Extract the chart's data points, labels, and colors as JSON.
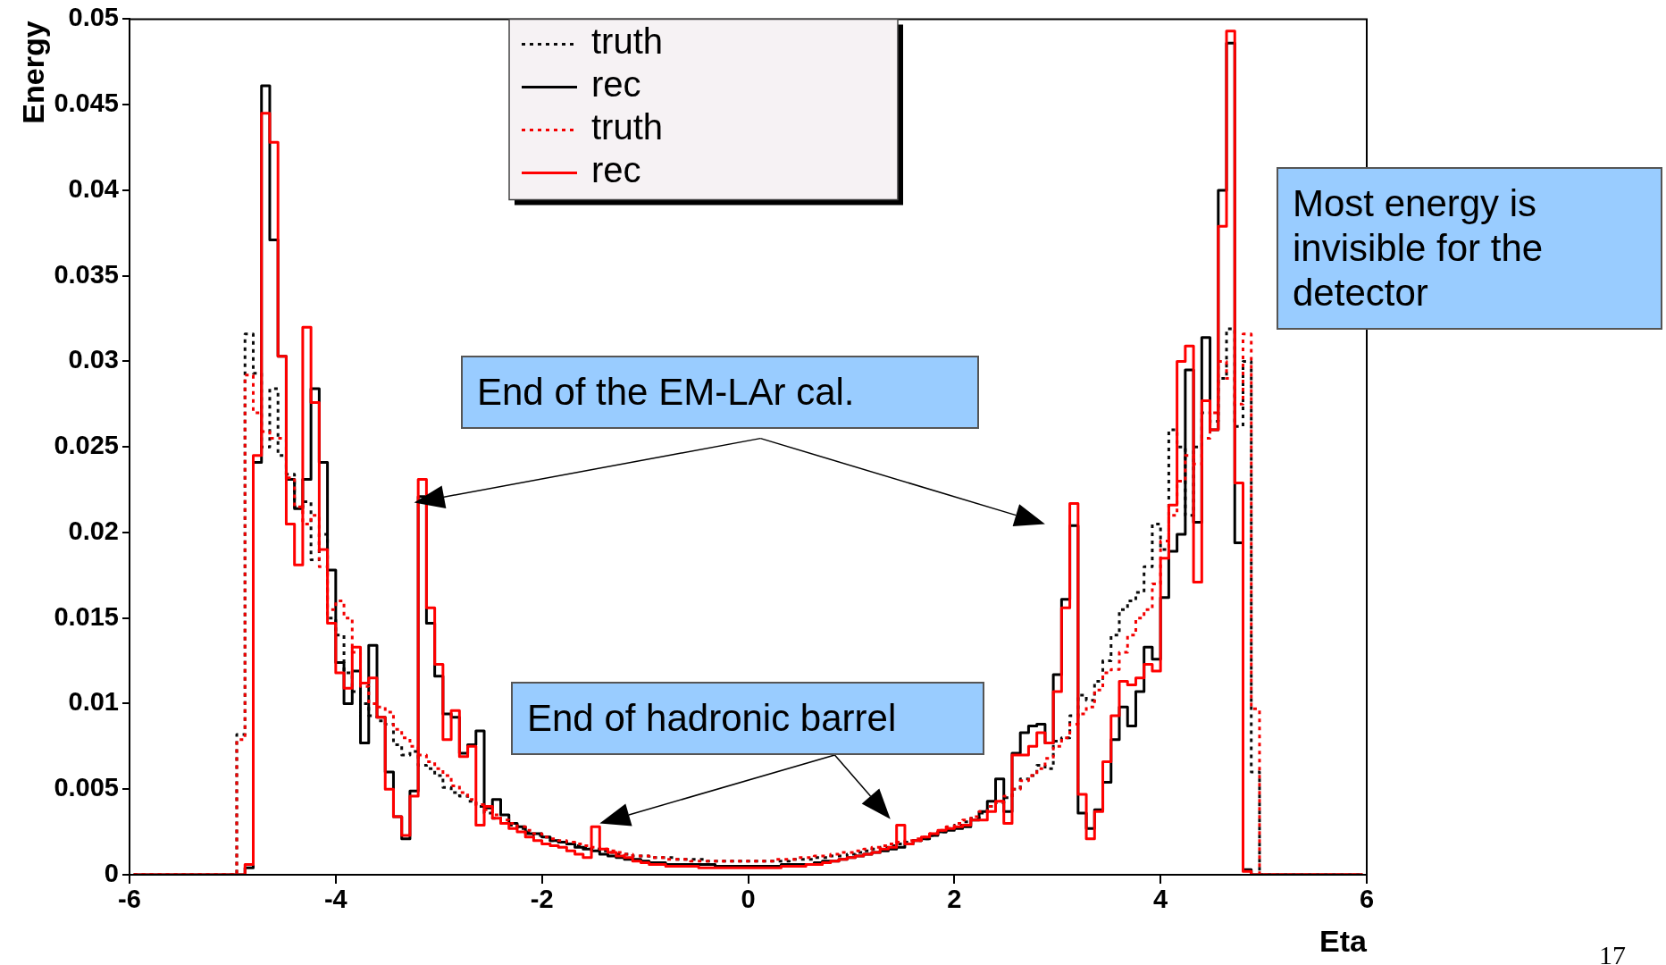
{
  "chart_data": {
    "type": "histogram",
    "xlabel": "Eta",
    "ylabel": "Energy",
    "xlim": [
      -6,
      6
    ],
    "xticks": [
      -6,
      -4,
      -2,
      0,
      2,
      4,
      6
    ],
    "ylim": [
      0,
      0.05
    ],
    "yticks": [
      0,
      0.005,
      0.01,
      0.015,
      0.02,
      0.025,
      0.03,
      0.035,
      0.04,
      0.045,
      0.05
    ],
    "legend": "top",
    "bins": [
      -6,
      -5.92,
      -5.84,
      -5.76,
      -5.68,
      -5.6,
      -5.52,
      -5.44,
      -5.36,
      -5.28,
      -5.2,
      -5.12,
      -5.04,
      -4.96,
      -4.88,
      -4.8,
      -4.72,
      -4.64,
      -4.56,
      -4.48,
      -4.4,
      -4.32,
      -4.24,
      -4.16,
      -4.08,
      -4,
      -3.92,
      -3.84,
      -3.76,
      -3.68,
      -3.6,
      -3.52,
      -3.44,
      -3.36,
      -3.28,
      -3.2,
      -3.12,
      -3.04,
      -2.96,
      -2.88,
      -2.8,
      -2.72,
      -2.64,
      -2.56,
      -2.48,
      -2.4,
      -2.32,
      -2.24,
      -2.16,
      -2.08,
      -2,
      -1.92,
      -1.84,
      -1.76,
      -1.68,
      -1.6,
      -1.52,
      -1.44,
      -1.36,
      -1.28,
      -1.2,
      -1.12,
      -1.04,
      -0.96,
      -0.88,
      -0.8,
      -0.72,
      -0.64,
      -0.56,
      -0.48,
      -0.4,
      -0.32,
      -0.24,
      -0.16,
      -0.08,
      0,
      0.08,
      0.16,
      0.24,
      0.32,
      0.4,
      0.48,
      0.56,
      0.64,
      0.72,
      0.8,
      0.88,
      0.96,
      1.04,
      1.12,
      1.2,
      1.28,
      1.36,
      1.44,
      1.52,
      1.6,
      1.68,
      1.76,
      1.84,
      1.92,
      2,
      2.08,
      2.16,
      2.24,
      2.32,
      2.4,
      2.48,
      2.56,
      2.64,
      2.72,
      2.8,
      2.88,
      2.96,
      3.04,
      3.12,
      3.2,
      3.28,
      3.36,
      3.44,
      3.52,
      3.6,
      3.68,
      3.76,
      3.84,
      3.92,
      4,
      4.08,
      4.16,
      4.24,
      4.32,
      4.4,
      4.48,
      4.56,
      4.64,
      4.72,
      4.8,
      4.88,
      4.96,
      5.04,
      5.12,
      5.2,
      5.28,
      5.36,
      5.44,
      5.52,
      5.6,
      5.68,
      5.76,
      5.84,
      5.92,
      6
    ],
    "series": [
      {
        "name": "truth",
        "color": "#0a0a0a",
        "line_style": "dotted",
        "values": [
          0,
          0,
          0,
          0,
          0,
          0,
          0,
          0,
          0,
          0,
          0,
          0,
          0,
          0.0082,
          0.0316,
          0.0293,
          0.025,
          0.0284,
          0.0245,
          0.0234,
          0.0215,
          0.0218,
          0.0184,
          0.0199,
          0.015,
          0.014,
          0.0118,
          0.0107,
          0.01,
          0.0093,
          0.009,
          0.0088,
          0.0076,
          0.007,
          0.0072,
          0.0064,
          0.0062,
          0.0058,
          0.0051,
          0.0048,
          0.0046,
          0.0043,
          0.004,
          0.0036,
          0.0033,
          0.003,
          0.0029,
          0.0027,
          0.0025,
          0.0023,
          0.0022,
          0.002,
          0.0019,
          0.0018,
          0.0017,
          0.0016,
          0.0015,
          0.0014,
          0.0013,
          0.0012,
          0.0012,
          0.0011,
          0.0011,
          0.001,
          0.001,
          0.001,
          0.0009,
          0.0009,
          0.0009,
          0.0009,
          0.0008,
          0.0008,
          0.0008,
          0.0008,
          0.0008,
          0.0008,
          0.0008,
          0.0008,
          0.0008,
          0.0008,
          0.0009,
          0.0009,
          0.0009,
          0.001,
          0.001,
          0.0011,
          0.0011,
          0.0012,
          0.0013,
          0.0014,
          0.0015,
          0.0016,
          0.0017,
          0.0018,
          0.0019,
          0.002,
          0.0021,
          0.0023,
          0.0025,
          0.0027,
          0.0029,
          0.0031,
          0.0033,
          0.0036,
          0.004,
          0.0042,
          0.0045,
          0.005,
          0.0056,
          0.0058,
          0.0064,
          0.0062,
          0.0078,
          0.008,
          0.0093,
          0.0105,
          0.0102,
          0.0113,
          0.0125,
          0.014,
          0.0155,
          0.016,
          0.0165,
          0.018,
          0.0205,
          0.019,
          0.026,
          0.025,
          0.021,
          0.025,
          0.027,
          0.0265,
          0.029,
          0.0319,
          0.0262,
          0.03,
          0.006,
          0,
          0,
          0,
          0,
          0,
          0,
          0,
          0,
          0,
          0,
          0,
          0,
          0
        ]
      },
      {
        "name": "rec",
        "color": "#000000",
        "line_style": "solid",
        "values": [
          0,
          0,
          0,
          0,
          0,
          0,
          0,
          0,
          0,
          0,
          0,
          0,
          0,
          0,
          0.0004,
          0.0241,
          0.0461,
          0.0371,
          0.0303,
          0.0231,
          0.0214,
          0.0231,
          0.0284,
          0.0241,
          0.0178,
          0.0124,
          0.01,
          0.0119,
          0.0077,
          0.0134,
          0.0092,
          0.006,
          0.0034,
          0.0021,
          0.0049,
          0.0221,
          0.0147,
          0.0116,
          0.0094,
          0.0092,
          0.0071,
          0.0076,
          0.0084,
          0.0039,
          0.0044,
          0.0035,
          0.003,
          0.0028,
          0.0024,
          0.0024,
          0.0022,
          0.002,
          0.0019,
          0.0018,
          0.0016,
          0.0015,
          0.0014,
          0.0012,
          0.0011,
          0.001,
          0.0009,
          0.0009,
          0.0008,
          0.0007,
          0.0007,
          0.0006,
          0.0006,
          0.0006,
          0.0006,
          0.0006,
          0.0006,
          0.0005,
          0.0005,
          0.0005,
          0.0005,
          0.0005,
          0.0005,
          0.0005,
          0.0005,
          0.0006,
          0.0006,
          0.0006,
          0.0006,
          0.0007,
          0.0008,
          0.0008,
          0.0009,
          0.001,
          0.0011,
          0.0012,
          0.0013,
          0.0014,
          0.0015,
          0.0016,
          0.0018,
          0.002,
          0.0021,
          0.0023,
          0.0025,
          0.0026,
          0.0027,
          0.0028,
          0.0032,
          0.0037,
          0.0043,
          0.0056,
          0.0037,
          0.0071,
          0.0083,
          0.0087,
          0.0088,
          0.0077,
          0.0117,
          0.0161,
          0.0204,
          0.0036,
          0.0027,
          0.0038,
          0.0054,
          0.0079,
          0.0098,
          0.0087,
          0.0107,
          0.0133,
          0.0126,
          0.0162,
          0.0189,
          0.0199,
          0.0295,
          0.0206,
          0.0314,
          0.026,
          0.04,
          0.0486,
          0.0194,
          0.0003,
          0,
          0,
          0,
          0,
          0,
          0,
          0,
          0,
          0,
          0,
          0,
          0,
          0,
          0
        ]
      },
      {
        "name": "truth",
        "color": "#f40000",
        "line_style": "dotted",
        "values": [
          0,
          0,
          0,
          0,
          0,
          0,
          0,
          0,
          0,
          0,
          0,
          0,
          0,
          0.0079,
          0.0292,
          0.027,
          0.0259,
          0.0255,
          0.0255,
          0.0232,
          0.0215,
          0.0205,
          0.021,
          0.018,
          0.0155,
          0.016,
          0.015,
          0.013,
          0.011,
          0.01,
          0.0098,
          0.0095,
          0.0085,
          0.008,
          0.0075,
          0.007,
          0.0066,
          0.0062,
          0.0058,
          0.0052,
          0.0048,
          0.0044,
          0.0041,
          0.0038,
          0.0035,
          0.0032,
          0.003,
          0.0028,
          0.0026,
          0.0024,
          0.0022,
          0.0021,
          0.002,
          0.0019,
          0.0018,
          0.0017,
          0.0016,
          0.0015,
          0.0014,
          0.0013,
          0.0012,
          0.0011,
          0.0011,
          0.001,
          0.001,
          0.0009,
          0.0009,
          0.0009,
          0.0008,
          0.0008,
          0.0008,
          0.0008,
          0.0008,
          0.0008,
          0.0008,
          0.0008,
          0.0008,
          0.0008,
          0.0009,
          0.0009,
          0.0009,
          0.001,
          0.001,
          0.0011,
          0.0011,
          0.0012,
          0.0013,
          0.0013,
          0.0014,
          0.0015,
          0.0016,
          0.0017,
          0.0018,
          0.0019,
          0.002,
          0.0021,
          0.0022,
          0.0024,
          0.0026,
          0.0028,
          0.003,
          0.0032,
          0.0034,
          0.0037,
          0.004,
          0.0043,
          0.0046,
          0.005,
          0.0055,
          0.0058,
          0.0062,
          0.0068,
          0.0075,
          0.008,
          0.0088,
          0.0094,
          0.0098,
          0.0108,
          0.0118,
          0.012,
          0.013,
          0.014,
          0.015,
          0.0155,
          0.017,
          0.0195,
          0.021,
          0.023,
          0.0245,
          0.024,
          0.0255,
          0.027,
          0.03,
          0.029,
          0.0275,
          0.0316,
          0.0097,
          0,
          0,
          0,
          0,
          0,
          0,
          0,
          0,
          0,
          0,
          0,
          0,
          0
        ]
      },
      {
        "name": "rec",
        "color": "#ff0000",
        "line_style": "solid",
        "values": [
          0,
          0,
          0,
          0,
          0,
          0,
          0,
          0,
          0,
          0,
          0,
          0,
          0,
          0,
          0.0006,
          0.0245,
          0.0445,
          0.0428,
          0.0303,
          0.0205,
          0.0181,
          0.032,
          0.0276,
          0.019,
          0.0147,
          0.0118,
          0.0109,
          0.0133,
          0.0112,
          0.0115,
          0.0092,
          0.005,
          0.0034,
          0.0023,
          0.0046,
          0.0231,
          0.0156,
          0.0123,
          0.0079,
          0.0096,
          0.0069,
          0.0075,
          0.0029,
          0.004,
          0.0033,
          0.003,
          0.0027,
          0.0025,
          0.0022,
          0.002,
          0.0018,
          0.0017,
          0.0016,
          0.0014,
          0.0012,
          0.001,
          0.0028,
          0.0015,
          0.0013,
          0.0011,
          0.001,
          0.0008,
          0.0007,
          0.0006,
          0.0006,
          0.0005,
          0.0005,
          0.0005,
          0.0005,
          0.0004,
          0.0004,
          0.0004,
          0.0004,
          0.0004,
          0.0004,
          0.0004,
          0.0004,
          0.0004,
          0.0004,
          0.0005,
          0.0005,
          0.0005,
          0.0006,
          0.0006,
          0.0007,
          0.0008,
          0.0009,
          0.001,
          0.0011,
          0.0012,
          0.0013,
          0.0015,
          0.0016,
          0.0029,
          0.0018,
          0.002,
          0.0022,
          0.0024,
          0.0026,
          0.0027,
          0.0028,
          0.0029,
          0.0032,
          0.0032,
          0.0037,
          0.0043,
          0.003,
          0.007,
          0.007,
          0.0075,
          0.0083,
          0.0077,
          0.0107,
          0.0156,
          0.0217,
          0.0047,
          0.0021,
          0.0037,
          0.0066,
          0.0093,
          0.0113,
          0.0111,
          0.0115,
          0.0123,
          0.0119,
          0.0185,
          0.0216,
          0.03,
          0.0309,
          0.0171,
          0.0277,
          0.026,
          0.0379,
          0.0493,
          0.0229,
          0.0002,
          0,
          0,
          0,
          0,
          0,
          0,
          0,
          0,
          0,
          0,
          0,
          0,
          0,
          0
        ]
      }
    ],
    "annotations": [
      "End of the EM-LAr cal.",
      "End of hadronic barrel",
      "Most energy is invisible for the detector",
      "17"
    ]
  }
}
